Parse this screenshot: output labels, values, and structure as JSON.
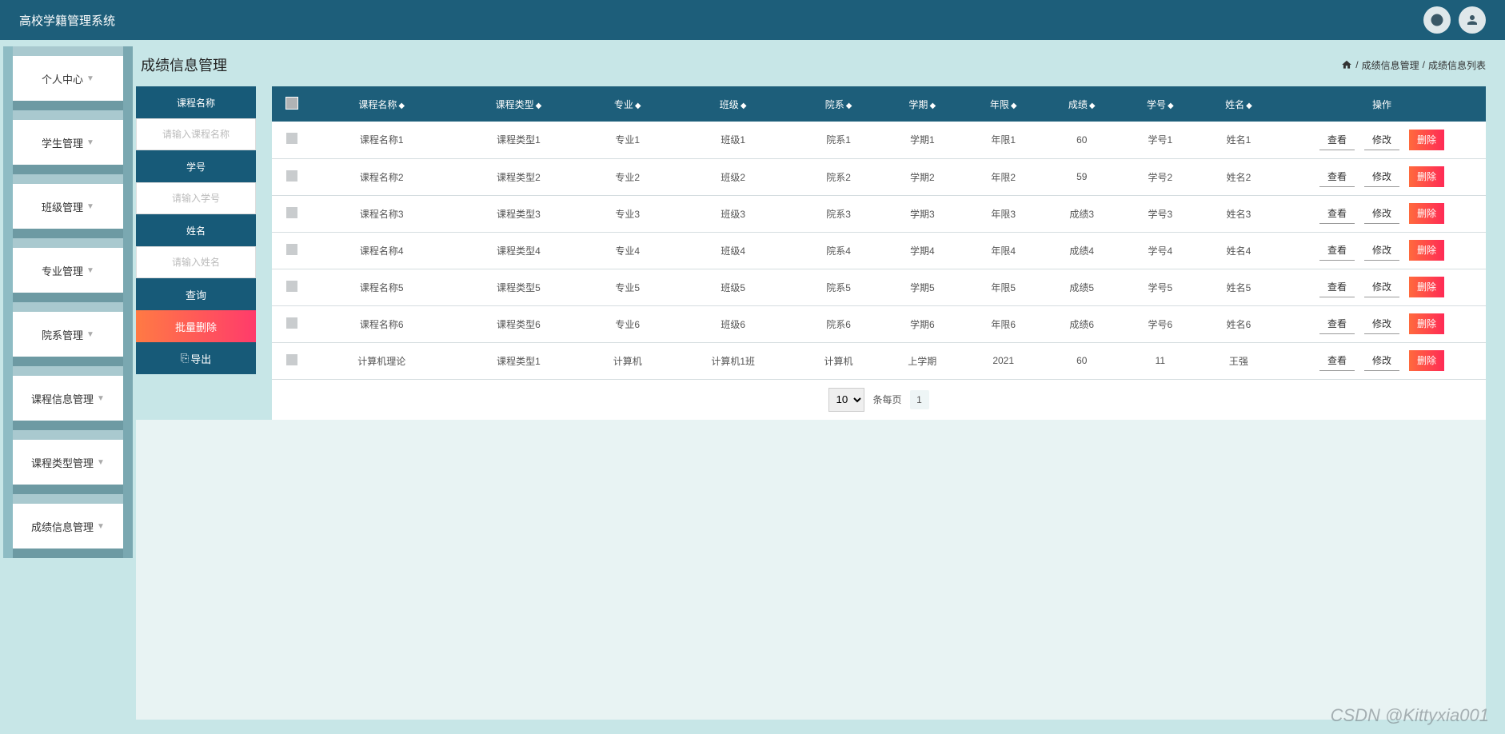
{
  "header": {
    "app_title": "高校学籍管理系统"
  },
  "sidebar": {
    "items": [
      {
        "label": "个人中心"
      },
      {
        "label": "学生管理"
      },
      {
        "label": "班级管理"
      },
      {
        "label": "专业管理"
      },
      {
        "label": "院系管理"
      },
      {
        "label": "课程信息管理"
      },
      {
        "label": "课程类型管理"
      },
      {
        "label": "成绩信息管理"
      }
    ]
  },
  "page": {
    "title": "成绩信息管理",
    "breadcrumb": {
      "sep": "/",
      "a": "成绩信息管理",
      "b": "成绩信息列表"
    }
  },
  "filter": {
    "labels": {
      "course": "课程名称",
      "sid": "学号",
      "name": "姓名"
    },
    "placeholders": {
      "course": "请输入课程名称",
      "sid": "请输入学号",
      "name": "请输入姓名"
    },
    "buttons": {
      "query": "查询",
      "batch_delete": "批量删除",
      "export": "导出"
    }
  },
  "table": {
    "columns": [
      "课程名称",
      "课程类型",
      "专业",
      "班级",
      "院系",
      "学期",
      "年限",
      "成绩",
      "学号",
      "姓名",
      "操作"
    ],
    "actions": {
      "view": "查看",
      "edit": "修改",
      "del": "删除"
    },
    "rows": [
      {
        "c": [
          "课程名称1",
          "课程类型1",
          "专业1",
          "班级1",
          "院系1",
          "学期1",
          "年限1",
          "60",
          "学号1",
          "姓名1"
        ]
      },
      {
        "c": [
          "课程名称2",
          "课程类型2",
          "专业2",
          "班级2",
          "院系2",
          "学期2",
          "年限2",
          "59",
          "学号2",
          "姓名2"
        ]
      },
      {
        "c": [
          "课程名称3",
          "课程类型3",
          "专业3",
          "班级3",
          "院系3",
          "学期3",
          "年限3",
          "成绩3",
          "学号3",
          "姓名3"
        ]
      },
      {
        "c": [
          "课程名称4",
          "课程类型4",
          "专业4",
          "班级4",
          "院系4",
          "学期4",
          "年限4",
          "成绩4",
          "学号4",
          "姓名4"
        ]
      },
      {
        "c": [
          "课程名称5",
          "课程类型5",
          "专业5",
          "班级5",
          "院系5",
          "学期5",
          "年限5",
          "成绩5",
          "学号5",
          "姓名5"
        ]
      },
      {
        "c": [
          "课程名称6",
          "课程类型6",
          "专业6",
          "班级6",
          "院系6",
          "学期6",
          "年限6",
          "成绩6",
          "学号6",
          "姓名6"
        ]
      },
      {
        "c": [
          "计算机理论",
          "课程类型1",
          "计算机",
          "计算机1班",
          "计算机",
          "上学期",
          "2021",
          "60",
          "11",
          "王强"
        ]
      }
    ]
  },
  "pager": {
    "size_selected": "10",
    "per_page": "条每页",
    "page": "1"
  },
  "colors": {
    "header": "#1d5e7a",
    "accent": "#175a78",
    "danger_start": "#ff7a44",
    "danger_end": "#ff3b6b",
    "page_bg": "#c7e6e7",
    "content_bg": "#e8f3f3"
  },
  "watermark": "CSDN @Kittyxia001"
}
